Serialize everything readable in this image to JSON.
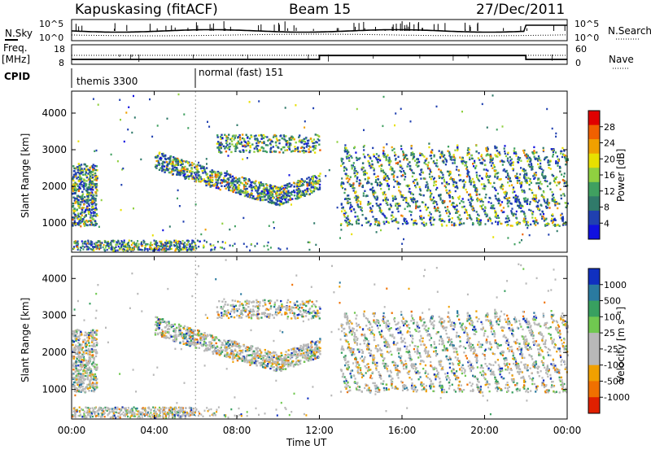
{
  "header": {
    "radar": "Kapuskasing (fitACF)",
    "beam": "Beam 15",
    "date": "27/Dec/2011"
  },
  "top_panels": {
    "nsky_label": "N.Sky",
    "nsearch_label": "N.Search",
    "freq_label_line1": "Freq.",
    "freq_label_line2": "[MHz]",
    "nave_label": "Nave",
    "cpid_label": "CPID",
    "noise_ticks": [
      "10^5",
      "10^0"
    ],
    "freq_ticks": [
      "18",
      "8"
    ],
    "nave_ticks": [
      "60",
      "0"
    ],
    "cpid_segments": [
      {
        "start_hour": 0,
        "end_hour": 6,
        "label": "themis 3300"
      },
      {
        "start_hour": 6,
        "end_hour": 24,
        "label": "normal (fast) 151"
      }
    ],
    "freq_steps": [
      {
        "start_hour": 0,
        "end_hour": 12,
        "value": 10.5
      },
      {
        "start_hour": 12,
        "end_hour": 22,
        "value": 12.5
      },
      {
        "start_hour": 22,
        "end_hour": 24,
        "value": 10.5
      }
    ]
  },
  "chart_data": [
    {
      "type": "heatmap",
      "panel": "power",
      "ylabel": "Slant Range [km]",
      "y_ticks": [
        "4000",
        "3000",
        "2000",
        "1000"
      ],
      "ylim": [
        200,
        4600
      ],
      "x_range_hours": [
        0,
        24
      ],
      "colorbar_label": "Power [dB]",
      "colorbar_ticks": [
        "28",
        "24",
        "20",
        "16",
        "12",
        "8",
        "4"
      ],
      "colorbar_colors": [
        "#e00000",
        "#f06000",
        "#f0a000",
        "#e8e000",
        "#90d040",
        "#40a060",
        "#307a6a",
        "#2040b0",
        "#1010e0"
      ],
      "features": [
        {
          "name": "early-echo",
          "x": [
            0,
            1.2
          ],
          "y": [
            900,
            2600
          ]
        },
        {
          "name": "arc-echo",
          "x": [
            3.8,
            12
          ],
          "y": [
            1400,
            3400
          ]
        },
        {
          "name": "late-bands",
          "x": [
            13,
            24
          ],
          "y": [
            1000,
            3500
          ]
        },
        {
          "name": "ground-noise",
          "x": [
            0,
            6
          ],
          "y": [
            200,
            500
          ]
        }
      ]
    },
    {
      "type": "heatmap",
      "panel": "velocity",
      "ylabel": "Slant Range [km]",
      "y_ticks": [
        "4000",
        "3000",
        "2000",
        "1000"
      ],
      "ylim": [
        200,
        4600
      ],
      "x_range_hours": [
        0,
        24
      ],
      "xlabel": "Time UT",
      "x_ticks": [
        "00:00",
        "04:00",
        "08:00",
        "12:00",
        "16:00",
        "20:00",
        "00:00"
      ],
      "colorbar_label": "Velocity [m s⁻¹]",
      "colorbar_ticks": [
        "1000",
        "500",
        "100",
        "25",
        "-25",
        "-100",
        "-500",
        "-1000"
      ],
      "colorbar_colors": [
        "#1030c0",
        "#2a7aa0",
        "#38a060",
        "#70c850",
        "#b8b8b8",
        "#b8b8b8",
        "#f0a000",
        "#f07000",
        "#e02000"
      ],
      "features": [
        {
          "name": "early-echo",
          "x": [
            0,
            1.2
          ],
          "y": [
            1000,
            2400
          ]
        },
        {
          "name": "arc-echo",
          "x": [
            3.8,
            12
          ],
          "y": [
            1400,
            3400
          ]
        },
        {
          "name": "late-bands",
          "x": [
            13,
            24
          ],
          "y": [
            1000,
            3500
          ]
        },
        {
          "name": "ground-noise",
          "x": [
            0,
            6
          ],
          "y": [
            200,
            500
          ]
        }
      ]
    }
  ]
}
